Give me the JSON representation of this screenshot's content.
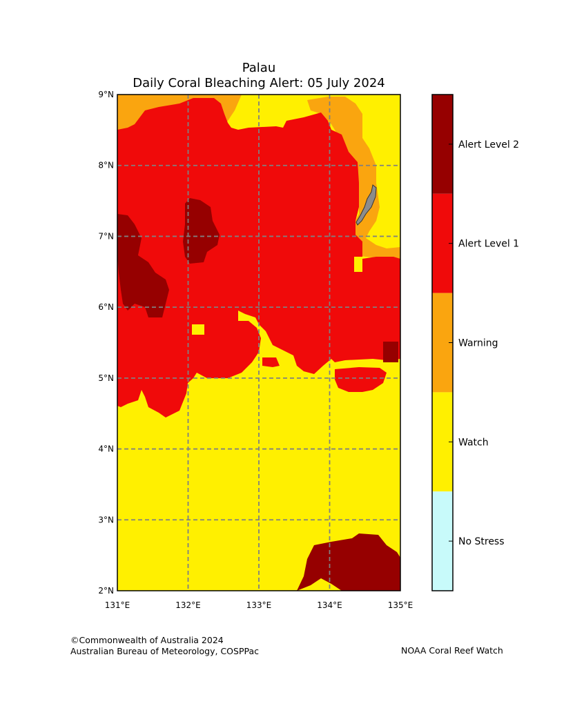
{
  "title": {
    "line1": "Palau",
    "line2": "Daily Coral Bleaching Alert: 05 July 2024"
  },
  "map": {
    "lon_range": [
      131,
      135
    ],
    "lat_range": [
      2,
      9
    ],
    "x_ticks": [
      "131°E",
      "132°E",
      "133°E",
      "134°E",
      "135°E"
    ],
    "y_ticks": [
      "2°N",
      "3°N",
      "4°N",
      "5°N",
      "6°N",
      "7°N",
      "8°N",
      "9°N"
    ],
    "gridlines": true,
    "land_color": "#8c8c8c",
    "regions": [
      {
        "level": "Warning",
        "color": "#faa50f"
      },
      {
        "level": "Alert Level 1",
        "color": "#f00a0a"
      },
      {
        "level": "Alert Level 2",
        "color": "#960000"
      },
      {
        "level": "Watch",
        "color": "#fff000"
      }
    ]
  },
  "legend": {
    "levels": [
      {
        "label": "Alert Level 2",
        "color": "#960000"
      },
      {
        "label": "Alert Level 1",
        "color": "#f00a0a"
      },
      {
        "label": "Warning",
        "color": "#faa50f"
      },
      {
        "label": "Watch",
        "color": "#fff000"
      },
      {
        "label": "No Stress",
        "color": "#c8fafa"
      }
    ]
  },
  "footer": {
    "copyright": "©Commonwealth of Australia 2024",
    "agency": "Australian Bureau of Meteorology, COSPPac",
    "source": "NOAA Coral Reef Watch"
  }
}
